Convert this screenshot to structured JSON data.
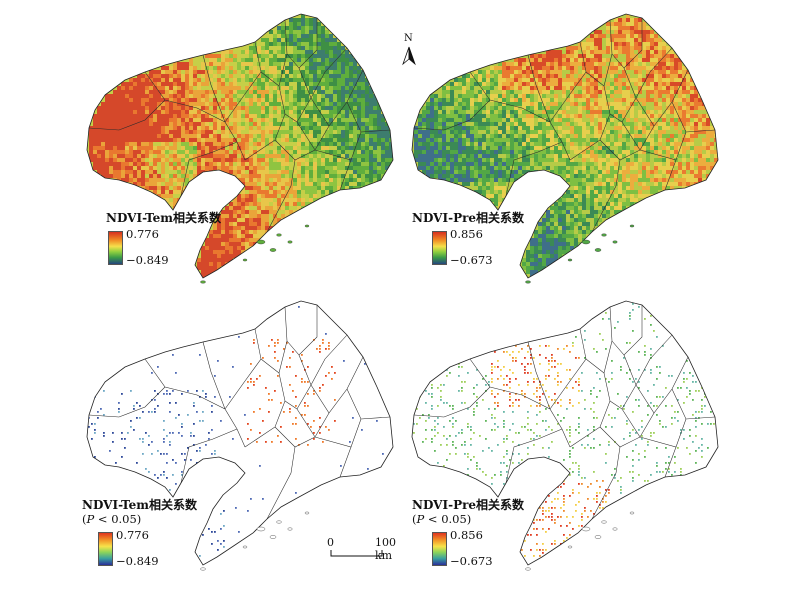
{
  "north_label": "N",
  "panels": [
    {
      "title": "NDVI-Tem相关系数",
      "subtitle": "",
      "max": "0.776",
      "min": "−0.849",
      "style": "full",
      "palette": [
        "#d5482a",
        "#e9782f",
        "#eaa43a",
        "#e8c64a",
        "#c6cf48",
        "#8fc441",
        "#5fae3d",
        "#3e8f45",
        "#3d7d6e"
      ]
    },
    {
      "title": "NDVI-Pre相关系数",
      "subtitle": "",
      "max": "0.856",
      "min": "−0.673",
      "style": "full",
      "palette": [
        "#d84a28",
        "#ea7a30",
        "#ecad3e",
        "#e7cf4d",
        "#b7cb47",
        "#7fbf42",
        "#52a746",
        "#3b8a55",
        "#3f6f8a"
      ]
    },
    {
      "title": "NDVI-Tem相关系数",
      "subtitle_pre": "(",
      "subtitle_p": "P",
      "subtitle_post": " < 0.05)",
      "max": "0.776",
      "min": "−0.849",
      "style": "sig",
      "palette": [
        "#e3451f",
        "#f07a2a",
        "#2f4a9a",
        "#4f6ab5",
        "#6fa9c6"
      ]
    },
    {
      "title": "NDVI-Pre相关系数",
      "subtitle_pre": "(",
      "subtitle_p": "P",
      "subtitle_post": " < 0.05)",
      "max": "0.856",
      "min": "−0.673",
      "style": "sig",
      "palette": [
        "#df3d22",
        "#ef8a2c",
        "#f4cf46",
        "#9fd05c",
        "#5fb55a",
        "#67b7a6"
      ]
    }
  ],
  "scale_bar": {
    "start": "0",
    "end": "100 km"
  }
}
